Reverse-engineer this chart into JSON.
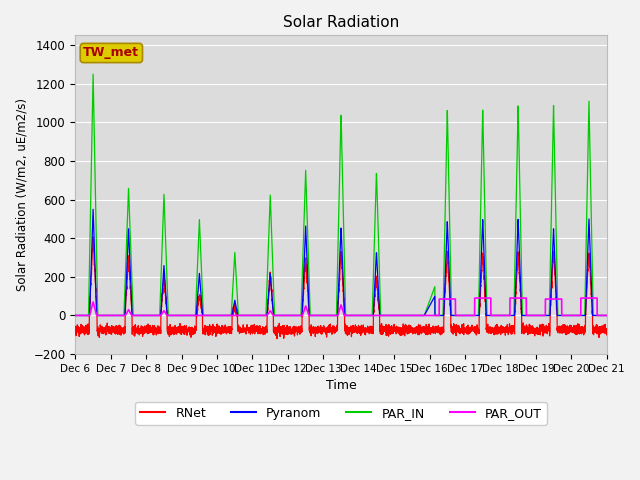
{
  "title": "Solar Radiation",
  "ylabel": "Solar Radiation (W/m2, uE/m2/s)",
  "xlabel": "Time",
  "ylim": [
    -200,
    1450
  ],
  "yticks": [
    -200,
    0,
    200,
    400,
    600,
    800,
    1000,
    1200,
    1400
  ],
  "fig_bg_color": "#f2f2f2",
  "plot_bg_color": "#dcdcdc",
  "grid_color": "#ffffff",
  "series_colors": {
    "RNet": "#ff0000",
    "Pyranom": "#0000ff",
    "PAR_IN": "#00cc00",
    "PAR_OUT": "#ff00ff"
  },
  "station_label": "TW_met",
  "station_label_color": "#aa0000",
  "station_box_facecolor": "#ddcc00",
  "station_box_edgecolor": "#aa8800"
}
